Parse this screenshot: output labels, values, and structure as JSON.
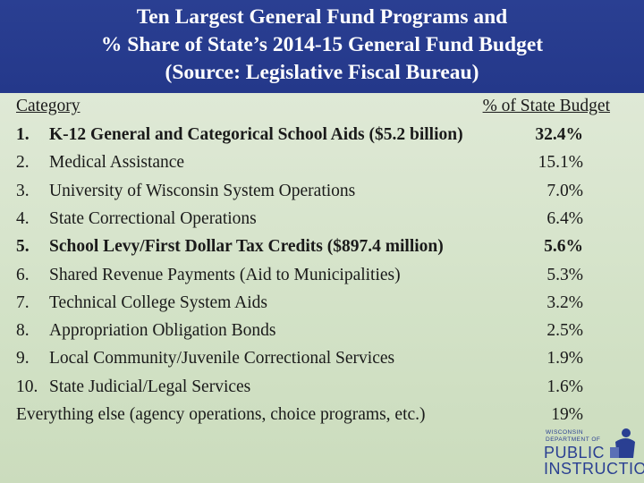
{
  "header": {
    "line1": "Ten Largest General Fund Programs and",
    "line2": "% Share of State’s 2014-15 General Fund Budget",
    "line3": "(Source:  Legislative Fiscal Bureau)"
  },
  "columns": {
    "category": "Category",
    "share": "% of State Budget"
  },
  "rows": [
    {
      "num": "1.",
      "label": "K-12 General and Categorical School Aids ($5.2 billion)",
      "pct": "32.4%",
      "bold": true
    },
    {
      "num": "2.",
      "label": "Medical Assistance",
      "pct": "15.1%",
      "bold": false
    },
    {
      "num": "3.",
      "label": "University of Wisconsin System Operations",
      "pct": "7.0%",
      "bold": false
    },
    {
      "num": "4.",
      "label": "State Correctional Operations",
      "pct": "6.4%",
      "bold": false
    },
    {
      "num": "5.",
      "label": "School Levy/First Dollar Tax Credits ($897.4 million)",
      "pct": "5.6%",
      "bold": true
    },
    {
      "num": "6.",
      "label": "Shared Revenue Payments (Aid to Municipalities)",
      "pct": "5.3%",
      "bold": false
    },
    {
      "num": "7.",
      "label": "Technical College System Aids",
      "pct": "3.2%",
      "bold": false
    },
    {
      "num": "8.",
      "label": "Appropriation Obligation Bonds",
      "pct": "2.5%",
      "bold": false
    },
    {
      "num": "9.",
      "label": "Local Community/Juvenile Correctional Services",
      "pct": "1.9%",
      "bold": false
    },
    {
      "num": "10.",
      "label": "State Judicial/Legal Services",
      "pct": "1.6%",
      "bold": false
    }
  ],
  "everything_else": {
    "label": "Everything else (agency operations, choice programs, etc.)",
    "pct": "19%"
  },
  "logo": {
    "line1": "WISCONSIN",
    "line2": "DEPARTMENT OF",
    "line3": "PUBLIC",
    "line4": "INSTRUCTION",
    "color": "#2a3f92"
  }
}
